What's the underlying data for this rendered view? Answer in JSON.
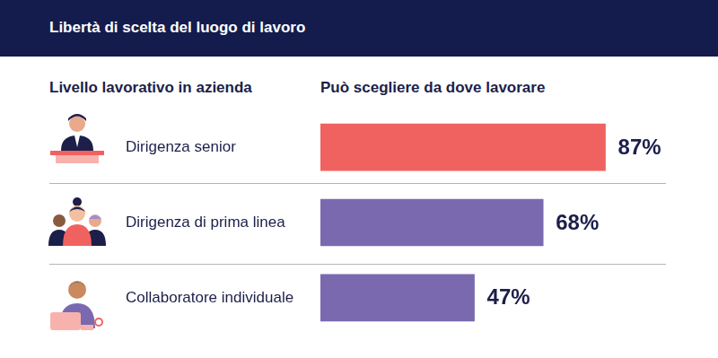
{
  "chart_data": {
    "type": "bar",
    "orientation": "horizontal",
    "title": "Libertà di scelta del luogo di lavoro",
    "y_label": "Livello lavorativo in azienda",
    "x_label": "Può scegliere da dove lavorare",
    "categories": [
      "Dirigenza senior",
      "Dirigenza di prima linea",
      "Collaboratore individuale"
    ],
    "values": [
      87,
      68,
      47
    ],
    "value_labels": [
      "87%",
      "68%",
      "47%"
    ],
    "colors": [
      "#f0625f",
      "#7b69b0",
      "#7b69b0"
    ],
    "xlim": [
      0,
      100
    ],
    "data_labels": true,
    "tick_labels": "y",
    "grid": false
  }
}
